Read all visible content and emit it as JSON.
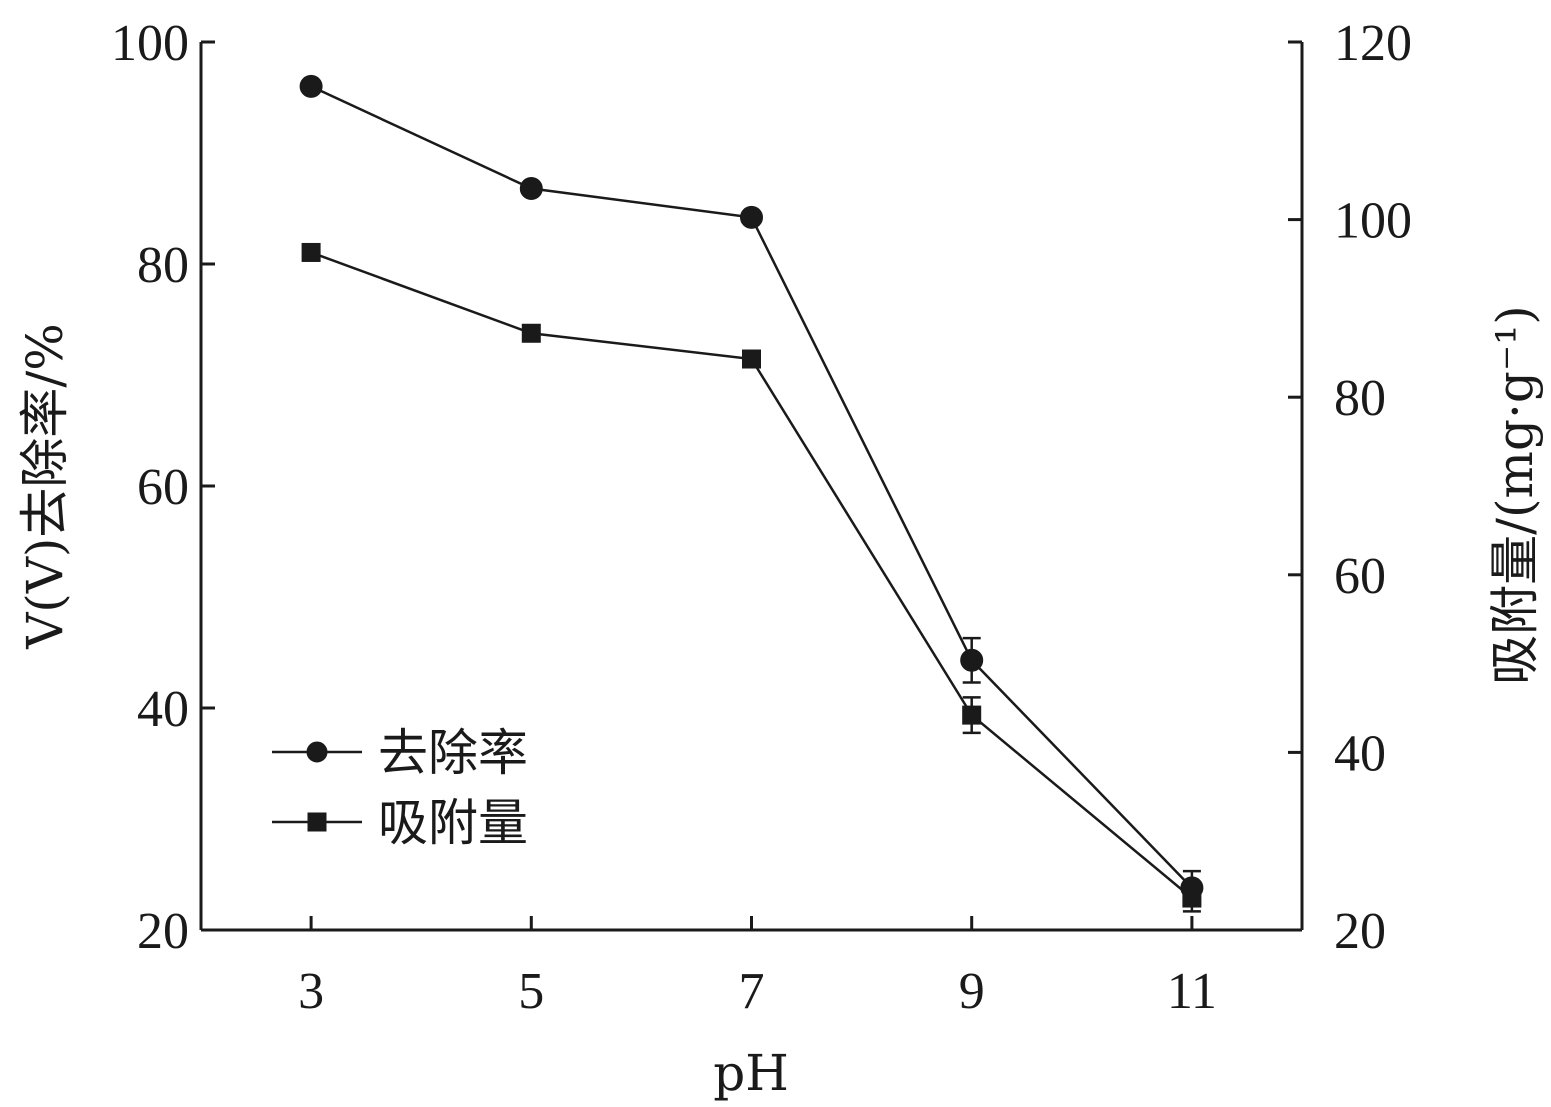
{
  "chart_data": {
    "type": "line",
    "xlabel": "pH",
    "ylabel": "V(V)去除率/%",
    "y2label": "吸附量/(mg·g⁻¹)",
    "x_ticks": [
      "3",
      "5",
      "7",
      "9",
      "11"
    ],
    "x": [
      3,
      5,
      7,
      9,
      11
    ],
    "xlim": [
      2,
      12
    ],
    "ylim": [
      20,
      100
    ],
    "y2lim": [
      20,
      120
    ],
    "y_ticks": [
      20,
      40,
      60,
      80,
      100
    ],
    "y2_ticks": [
      20,
      40,
      60,
      80,
      100,
      120
    ],
    "legend_position": "lower-left",
    "grid": false,
    "series": [
      {
        "name": "去除率",
        "marker": "circle",
        "axis": "left",
        "values": [
          96,
          86.8,
          84.2,
          44.3,
          23.8
        ],
        "errors": [
          0,
          0,
          0.5,
          2.0,
          1.5
        ]
      },
      {
        "name": "吸附量",
        "marker": "square",
        "axis": "right",
        "values": [
          96.3,
          87.2,
          84.3,
          44.2,
          23.6
        ],
        "errors": [
          0,
          0,
          0.5,
          2.0,
          1.5
        ]
      }
    ]
  }
}
